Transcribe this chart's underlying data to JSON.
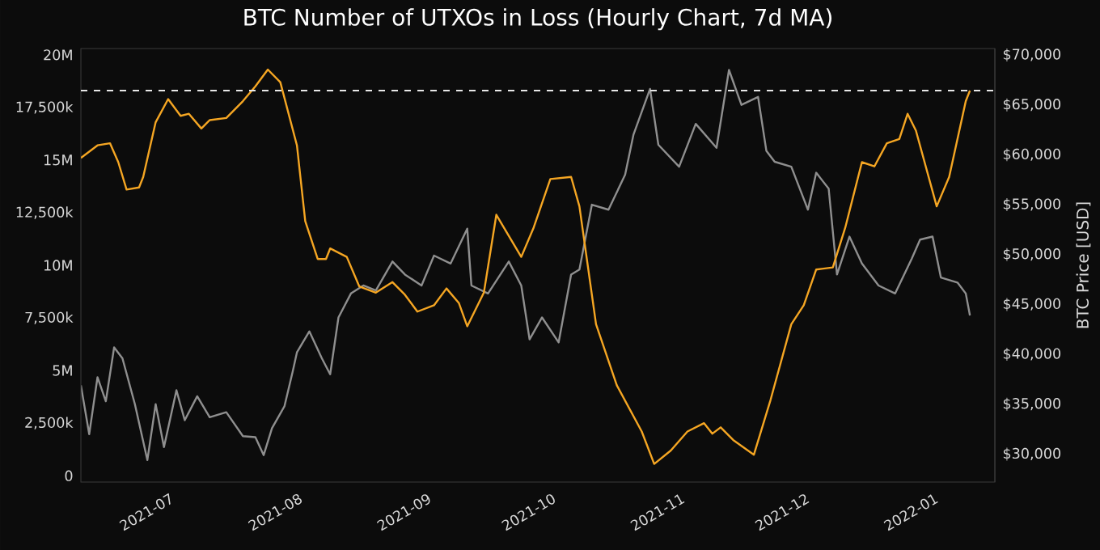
{
  "chart_data": {
    "type": "line",
    "title": "BTC Number of UTXOs in Loss (Hourly Chart, 7d MA)",
    "y2label": "BTC Price [USD]",
    "xlim": [
      "2021-06-09",
      "2022-01-15"
    ],
    "xticks": [
      {
        "value": "2021-07-01",
        "label": "2021-07"
      },
      {
        "value": "2021-08-01",
        "label": "2021-08"
      },
      {
        "value": "2021-09-01",
        "label": "2021-09"
      },
      {
        "value": "2021-10-01",
        "label": "2021-10"
      },
      {
        "value": "2021-11-01",
        "label": "2021-11"
      },
      {
        "value": "2021-12-01",
        "label": "2021-12"
      },
      {
        "value": "2022-01-01",
        "label": "2022-01"
      }
    ],
    "ylim": [
      -300000,
      20300000
    ],
    "yticks": [
      {
        "value": 0,
        "label": "0"
      },
      {
        "value": 2500000,
        "label": "2,500k"
      },
      {
        "value": 5000000,
        "label": "5M"
      },
      {
        "value": 7500000,
        "label": "7,500k"
      },
      {
        "value": 10000000,
        "label": "10M"
      },
      {
        "value": 12500000,
        "label": "12,500k"
      },
      {
        "value": 15000000,
        "label": "15M"
      },
      {
        "value": 17500000,
        "label": "17,500k"
      },
      {
        "value": 20000000,
        "label": "20M"
      }
    ],
    "y2lim": [
      27200,
      70650
    ],
    "y2ticks": [
      {
        "value": 30000,
        "label": "$30,000"
      },
      {
        "value": 35000,
        "label": "$35,000"
      },
      {
        "value": 40000,
        "label": "$40,000"
      },
      {
        "value": 45000,
        "label": "$45,000"
      },
      {
        "value": 50000,
        "label": "$50,000"
      },
      {
        "value": 55000,
        "label": "$55,000"
      },
      {
        "value": 60000,
        "label": "$60,000"
      },
      {
        "value": 65000,
        "label": "$65,000"
      },
      {
        "value": 70000,
        "label": "$70,000"
      }
    ],
    "ref_lines": [
      {
        "axis": "y",
        "value": 18300000,
        "color": "#e8e8e8",
        "line_style": "dashed"
      }
    ],
    "series": [
      {
        "axis": "y2",
        "color": "#8f8f8f",
        "x": [
          "2021-06-09",
          "2021-06-11",
          "2021-06-13",
          "2021-06-15",
          "2021-06-17",
          "2021-06-19",
          "2021-06-22",
          "2021-06-25",
          "2021-06-27",
          "2021-06-29",
          "2021-07-02",
          "2021-07-04",
          "2021-07-07",
          "2021-07-10",
          "2021-07-14",
          "2021-07-18",
          "2021-07-21",
          "2021-07-23",
          "2021-07-25",
          "2021-07-28",
          "2021-07-30",
          "2021-07-31",
          "2021-08-03",
          "2021-08-06",
          "2021-08-08",
          "2021-08-10",
          "2021-08-13",
          "2021-08-16",
          "2021-08-19",
          "2021-08-23",
          "2021-08-26",
          "2021-08-30",
          "2021-09-02",
          "2021-09-06",
          "2021-09-10",
          "2021-09-11",
          "2021-09-15",
          "2021-09-20",
          "2021-09-23",
          "2021-09-25",
          "2021-09-28",
          "2021-10-02",
          "2021-10-05",
          "2021-10-07",
          "2021-10-10",
          "2021-10-14",
          "2021-10-18",
          "2021-10-20",
          "2021-10-24",
          "2021-10-26",
          "2021-10-31",
          "2021-11-04",
          "2021-11-09",
          "2021-11-12",
          "2021-11-15",
          "2021-11-19",
          "2021-11-21",
          "2021-11-23",
          "2021-11-27",
          "2021-12-01",
          "2021-12-03",
          "2021-12-06",
          "2021-12-08",
          "2021-12-11",
          "2021-12-14",
          "2021-12-18",
          "2021-12-22",
          "2021-12-26",
          "2021-12-28",
          "2021-12-31",
          "2022-01-02",
          "2022-01-06",
          "2022-01-08",
          "2022-01-09"
        ],
        "values": [
          36900,
          32000,
          37700,
          35300,
          40700,
          39600,
          35000,
          29400,
          35000,
          30700,
          36400,
          33400,
          35800,
          33700,
          34200,
          31800,
          31700,
          29900,
          32600,
          34800,
          38300,
          40200,
          42300,
          39600,
          38000,
          43700,
          46100,
          46900,
          46400,
          49300,
          48000,
          46900,
          49900,
          49100,
          52600,
          46900,
          46100,
          49300,
          46900,
          41500,
          43700,
          41200,
          48000,
          48500,
          55000,
          54500,
          58000,
          62000,
          66600,
          61000,
          58800,
          63100,
          60700,
          68500,
          65000,
          65800,
          60400,
          59300,
          58800,
          54500,
          58200,
          56600,
          48000,
          51800,
          49100,
          46900,
          46100,
          49600,
          51500,
          51800,
          47700,
          47200,
          46100,
          43900
        ]
      },
      {
        "axis": "y",
        "color": "#f5a623",
        "x": [
          "2021-06-09",
          "2021-06-13",
          "2021-06-16",
          "2021-06-18",
          "2021-06-20",
          "2021-06-23",
          "2021-06-24",
          "2021-06-27",
          "2021-06-30",
          "2021-07-03",
          "2021-07-05",
          "2021-07-08",
          "2021-07-10",
          "2021-07-14",
          "2021-07-18",
          "2021-07-21",
          "2021-07-24",
          "2021-07-27",
          "2021-07-31",
          "2021-08-02",
          "2021-08-05",
          "2021-08-07",
          "2021-08-08",
          "2021-08-12",
          "2021-08-15",
          "2021-08-19",
          "2021-08-23",
          "2021-08-26",
          "2021-08-29",
          "2021-09-02",
          "2021-09-05",
          "2021-09-08",
          "2021-09-10",
          "2021-09-14",
          "2021-09-17",
          "2021-09-20",
          "2021-09-23",
          "2021-09-26",
          "2021-09-30",
          "2021-10-05",
          "2021-10-07",
          "2021-10-11",
          "2021-10-16",
          "2021-10-22",
          "2021-10-25",
          "2021-10-29",
          "2021-11-02",
          "2021-11-06",
          "2021-11-08",
          "2021-11-10",
          "2021-11-13",
          "2021-11-18",
          "2021-11-22",
          "2021-11-27",
          "2021-11-30",
          "2021-12-03",
          "2021-12-07",
          "2021-12-10",
          "2021-12-14",
          "2021-12-17",
          "2021-12-20",
          "2021-12-23",
          "2021-12-25",
          "2021-12-27",
          "2022-01-01",
          "2022-01-04",
          "2022-01-08",
          "2022-01-09"
        ],
        "values": [
          15100000,
          15700000,
          15800000,
          14900000,
          13600000,
          13700000,
          14200000,
          16800000,
          17900000,
          17100000,
          17200000,
          16500000,
          16900000,
          17000000,
          17800000,
          18500000,
          19300000,
          18700000,
          15700000,
          12100000,
          10300000,
          10300000,
          10800000,
          10400000,
          9000000,
          8700000,
          9200000,
          8600000,
          7800000,
          8100000,
          8900000,
          8200000,
          7100000,
          8700000,
          12400000,
          11400000,
          10400000,
          11800000,
          14100000,
          14200000,
          12800000,
          7200000,
          4300000,
          2100000,
          560000,
          1200000,
          2100000,
          2500000,
          2000000,
          2300000,
          1700000,
          1000000,
          3600000,
          7200000,
          8100000,
          9800000,
          9900000,
          11800000,
          14900000,
          14700000,
          15800000,
          16000000,
          17200000,
          16400000,
          12800000,
          14200000,
          17800000,
          18300000
        ]
      }
    ]
  }
}
